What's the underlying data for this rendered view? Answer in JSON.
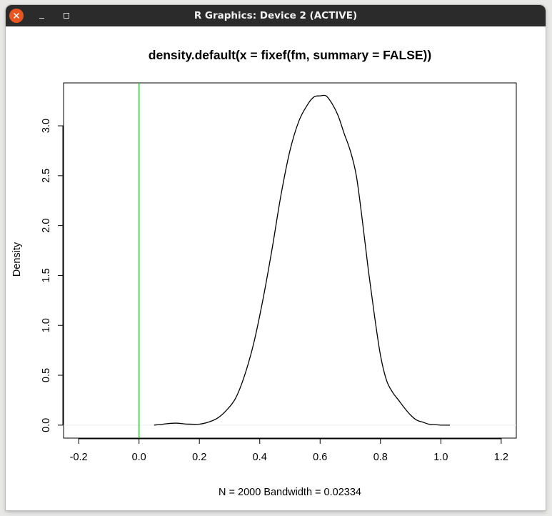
{
  "window": {
    "title": "R Graphics: Device 2 (ACTIVE)",
    "close_icon": "close-icon",
    "minimize_icon": "minimize-icon",
    "maximize_icon": "maximize-icon"
  },
  "chart_data": {
    "type": "line",
    "title": "density.default(x = fixef(fm, summary = FALSE))",
    "xlabel": "N = 2000   Bandwidth = 0.02334",
    "ylabel": "Density",
    "xlim": [
      -0.25,
      1.25
    ],
    "ylim": [
      -0.13,
      3.43
    ],
    "x_ticks": [
      -0.2,
      0.0,
      0.2,
      0.4,
      0.6,
      0.8,
      1.0,
      1.2
    ],
    "x_tick_labels": [
      "-0.2",
      "0.0",
      "0.2",
      "0.4",
      "0.6",
      "0.8",
      "1.0",
      "1.2"
    ],
    "y_ticks": [
      0.0,
      0.5,
      1.0,
      1.5,
      2.0,
      2.5,
      3.0
    ],
    "y_tick_labels": [
      "0.0",
      "0.5",
      "1.0",
      "1.5",
      "2.0",
      "2.5",
      "3.0"
    ],
    "series": [
      {
        "color": "#000000",
        "x": [
          0.05,
          0.08,
          0.12,
          0.16,
          0.2,
          0.23,
          0.26,
          0.29,
          0.32,
          0.35,
          0.38,
          0.41,
          0.44,
          0.47,
          0.5,
          0.53,
          0.56,
          0.58,
          0.6,
          0.62,
          0.64,
          0.66,
          0.68,
          0.7,
          0.72,
          0.74,
          0.76,
          0.78,
          0.8,
          0.82,
          0.84,
          0.86,
          0.88,
          0.9,
          0.92,
          0.94,
          0.96,
          0.98,
          1.0,
          1.03
        ],
        "y": [
          0.0,
          0.01,
          0.02,
          0.01,
          0.01,
          0.03,
          0.07,
          0.15,
          0.27,
          0.5,
          0.82,
          1.25,
          1.75,
          2.3,
          2.75,
          3.05,
          3.22,
          3.29,
          3.3,
          3.3,
          3.22,
          3.1,
          2.92,
          2.75,
          2.5,
          2.05,
          1.55,
          1.1,
          0.7,
          0.45,
          0.33,
          0.25,
          0.17,
          0.1,
          0.05,
          0.03,
          0.01,
          0.005,
          0.0,
          0.0
        ]
      }
    ],
    "vlines": [
      {
        "x": 0.0,
        "color": "#33cc33"
      }
    ],
    "hline_zero_color": "#eeeeee",
    "grid": false,
    "legend": "none"
  }
}
